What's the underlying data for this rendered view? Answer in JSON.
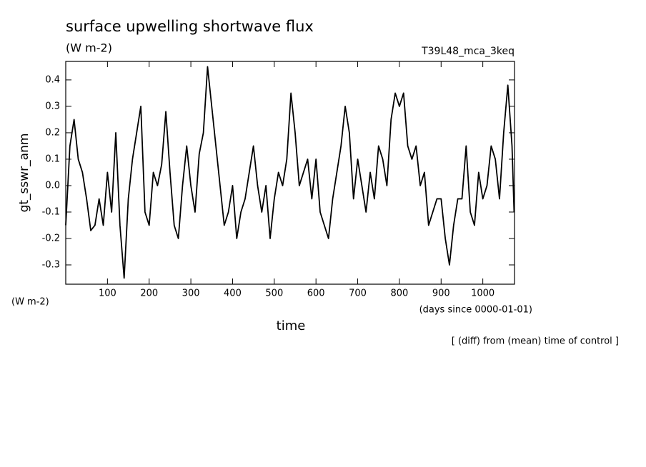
{
  "chart_data": {
    "type": "line",
    "title": "surface upwelling shortwave flux",
    "units": "(W m-2)",
    "run_label": "T39L48_mca_3keq",
    "y_label": "gt_sswr_anm",
    "y_units": "(W m-2)",
    "x_label": "time",
    "x_units": "(days since 0000-01-01)",
    "note": "[ (diff) from (mean) time of control ]",
    "color": "#000000",
    "xlim": [
      0,
      1076
    ],
    "ylim": [
      -0.373,
      0.47
    ],
    "xticks": [
      100,
      200,
      300,
      400,
      500,
      600,
      700,
      800,
      900,
      1000
    ],
    "yticks": [
      -0.3,
      -0.2,
      -0.1,
      {
        "value": 0,
        "label": "0.0"
      },
      0.1,
      0.2,
      0.3,
      0.4
    ],
    "x": [
      0,
      10,
      20,
      30,
      40,
      50,
      60,
      70,
      80,
      90,
      100,
      110,
      120,
      130,
      140,
      150,
      160,
      170,
      180,
      190,
      200,
      210,
      220,
      230,
      240,
      250,
      260,
      270,
      280,
      290,
      300,
      310,
      320,
      330,
      340,
      350,
      360,
      370,
      380,
      390,
      400,
      410,
      420,
      430,
      440,
      450,
      460,
      470,
      480,
      490,
      500,
      510,
      520,
      530,
      540,
      550,
      560,
      570,
      580,
      590,
      600,
      610,
      620,
      630,
      640,
      650,
      660,
      670,
      680,
      690,
      700,
      710,
      720,
      730,
      740,
      750,
      760,
      770,
      780,
      790,
      800,
      810,
      820,
      830,
      840,
      850,
      860,
      870,
      880,
      890,
      900,
      910,
      920,
      930,
      940,
      950,
      960,
      970,
      980,
      990,
      1000,
      1010,
      1020,
      1030,
      1040,
      1050,
      1060,
      1070,
      1075
    ],
    "values": [
      -0.15,
      0.15,
      0.25,
      0.1,
      0.05,
      -0.05,
      -0.17,
      -0.15,
      -0.05,
      -0.15,
      0.05,
      -0.1,
      0.2,
      -0.15,
      -0.35,
      -0.05,
      0.1,
      0.2,
      0.3,
      -0.1,
      -0.15,
      0.05,
      0.0,
      0.08,
      0.28,
      0.05,
      -0.15,
      -0.2,
      0.0,
      0.15,
      0.0,
      -0.1,
      0.12,
      0.2,
      0.45,
      0.3,
      0.15,
      0.0,
      -0.15,
      -0.1,
      0.0,
      -0.2,
      -0.1,
      -0.05,
      0.05,
      0.15,
      0.0,
      -0.1,
      0.0,
      -0.2,
      -0.05,
      0.05,
      0.0,
      0.1,
      0.35,
      0.2,
      0.0,
      0.05,
      0.1,
      -0.05,
      0.1,
      -0.1,
      -0.15,
      -0.2,
      -0.05,
      0.05,
      0.15,
      0.3,
      0.2,
      -0.05,
      0.1,
      0.0,
      -0.1,
      0.05,
      -0.05,
      0.15,
      0.1,
      0.0,
      0.25,
      0.35,
      0.3,
      0.35,
      0.15,
      0.1,
      0.15,
      0.0,
      0.05,
      -0.15,
      -0.1,
      -0.05,
      -0.05,
      -0.2,
      -0.3,
      -0.15,
      -0.05,
      -0.05,
      0.15,
      -0.1,
      -0.15,
      0.05,
      -0.05,
      0.0,
      0.15,
      0.1,
      -0.05,
      0.2,
      0.38,
      0.15,
      -0.1
    ]
  }
}
